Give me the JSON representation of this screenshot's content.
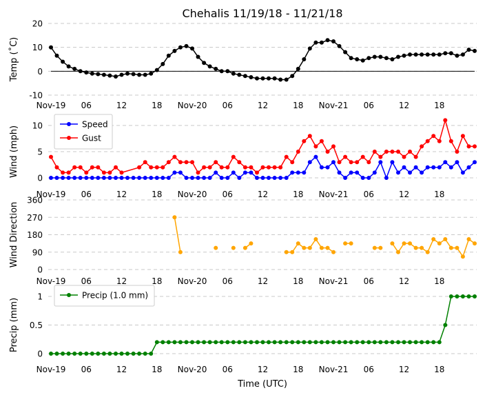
{
  "title": "Chehalis 11/19/18 - 11/21/18",
  "xlabel": "Time (UTC)",
  "x_ticks": [
    {
      "t": 0,
      "label": "Nov-19"
    },
    {
      "t": 6,
      "label": "06"
    },
    {
      "t": 12,
      "label": "12"
    },
    {
      "t": 18,
      "label": "18"
    },
    {
      "t": 24,
      "label": "Nov-20"
    },
    {
      "t": 30,
      "label": "06"
    },
    {
      "t": 36,
      "label": "12"
    },
    {
      "t": 42,
      "label": "18"
    },
    {
      "t": 48,
      "label": "Nov-21"
    },
    {
      "t": 54,
      "label": "06"
    },
    {
      "t": 60,
      "label": "12"
    },
    {
      "t": 66,
      "label": "18"
    }
  ],
  "xlim": [
    -1,
    72
  ],
  "colors": {
    "temp": "#000000",
    "speed": "#0000ff",
    "gust": "#ff0000",
    "direction": "#ffa500",
    "precip": "#008000",
    "grid": "#c8c8c8"
  },
  "chart_data": [
    {
      "type": "line",
      "ylabel": "Temp (˚C)",
      "ylim": [
        -10,
        20
      ],
      "yticks": [
        -10,
        0,
        10,
        20
      ],
      "zero_line": true,
      "series": [
        {
          "x": [
            0,
            1,
            2,
            3,
            4,
            5,
            6,
            7,
            8,
            9,
            10,
            11,
            12,
            13,
            14,
            15,
            16,
            17,
            18,
            19,
            20,
            21,
            22,
            23,
            24,
            25,
            26,
            27,
            28,
            29,
            30,
            31,
            32,
            33,
            34,
            35,
            36,
            37,
            38,
            39,
            40,
            41,
            42,
            43,
            44,
            45,
            46,
            47,
            48,
            49,
            50,
            51,
            52,
            53,
            54,
            55,
            56,
            57,
            58,
            59,
            60,
            61,
            62,
            63,
            64,
            65,
            66,
            67,
            68,
            69,
            70,
            71,
            72
          ],
          "values": [
            10,
            6.5,
            4,
            2,
            1,
            0,
            -0.5,
            -1,
            -1.2,
            -1.5,
            -1.8,
            -2.2,
            -1.5,
            -1,
            -1.2,
            -1.5,
            -1.5,
            -1,
            0.5,
            3,
            6.5,
            8.5,
            10,
            10.5,
            9.5,
            6,
            3.5,
            2,
            1,
            0,
            0,
            -1,
            -1.5,
            -2,
            -2.5,
            -3,
            -3,
            -3,
            -3,
            -3.5,
            -3.5,
            -2,
            1,
            5,
            9.5,
            12,
            12,
            13,
            12.5,
            10.5,
            8,
            5.5,
            5,
            4.5,
            5.5,
            6,
            6,
            5.5,
            5,
            6,
            6.5,
            7,
            7,
            7,
            7,
            7,
            7,
            7.5,
            7.5,
            6.5,
            7,
            9,
            8.5
          ]
        }
      ]
    },
    {
      "type": "line",
      "ylabel": "Wind (mph)",
      "ylim": [
        0,
        10
      ],
      "yticks": [
        0,
        5,
        10
      ],
      "legend": "top-left",
      "series": [
        {
          "name": "Speed",
          "x": [
            0,
            1,
            2,
            3,
            4,
            5,
            6,
            7,
            8,
            9,
            10,
            11,
            12,
            13,
            14,
            15,
            16,
            17,
            18,
            19,
            20,
            21,
            22,
            23,
            24,
            25,
            26,
            27,
            28,
            29,
            30,
            31,
            32,
            33,
            34,
            35,
            36,
            37,
            38,
            39,
            40,
            41,
            42,
            43,
            44,
            45,
            46,
            47,
            48,
            49,
            50,
            51,
            52,
            53,
            54,
            55,
            56,
            57,
            58,
            59,
            60,
            61,
            62,
            63,
            64,
            65,
            66,
            67,
            68,
            69,
            70,
            71,
            72
          ],
          "values": [
            0,
            0,
            0,
            0,
            0,
            0,
            0,
            0,
            0,
            0,
            0,
            0,
            0,
            0,
            0,
            0,
            0,
            0,
            0,
            0,
            0,
            1,
            1,
            0,
            0,
            0,
            0,
            0,
            1,
            0,
            0,
            1,
            0,
            1,
            1,
            0,
            0,
            0,
            0,
            0,
            0,
            1,
            1,
            1,
            3,
            4,
            2,
            2,
            3,
            1,
            0,
            1,
            1,
            0,
            0,
            1,
            3,
            0,
            3,
            1,
            2,
            1,
            2,
            1,
            2,
            2,
            2,
            3,
            2,
            3,
            1,
            2,
            3
          ]
        },
        {
          "name": "Gust",
          "x": [
            0,
            1,
            2,
            3,
            4,
            5,
            6,
            7,
            8,
            9,
            10,
            11,
            12,
            15,
            16,
            17,
            18,
            19,
            20,
            21,
            22,
            23,
            24,
            25,
            26,
            27,
            28,
            29,
            30,
            31,
            32,
            33,
            34,
            35,
            36,
            37,
            38,
            39,
            40,
            41,
            42,
            43,
            44,
            45,
            46,
            47,
            48,
            49,
            50,
            51,
            52,
            53,
            54,
            55,
            56,
            57,
            58,
            59,
            60,
            61,
            62,
            63,
            64,
            65,
            66,
            67,
            68,
            69,
            70,
            71,
            72
          ],
          "values": [
            4,
            2,
            1,
            1,
            2,
            2,
            1,
            2,
            2,
            1,
            1,
            2,
            1,
            2,
            3,
            2,
            2,
            2,
            3,
            4,
            3,
            3,
            3,
            1,
            2,
            2,
            3,
            2,
            2,
            4,
            3,
            2,
            2,
            1,
            2,
            2,
            2,
            2,
            4,
            3,
            5,
            7,
            8,
            6,
            7,
            5,
            6,
            3,
            4,
            3,
            3,
            4,
            3,
            5,
            4,
            5,
            5,
            5,
            4,
            5,
            4,
            6,
            7,
            8,
            7,
            11,
            7,
            5,
            8,
            6,
            6
          ]
        }
      ]
    },
    {
      "type": "line",
      "ylabel": "Wind Direction",
      "ylim": [
        0,
        360
      ],
      "yticks": [
        0,
        90,
        180,
        270,
        360
      ],
      "series": [
        {
          "segments": [
            {
              "x": [
                21,
                22
              ],
              "values": [
                270,
                90
              ]
            },
            {
              "x": [
                28
              ],
              "values": [
                112
              ]
            },
            {
              "x": [
                31
              ],
              "values": [
                112
              ]
            },
            {
              "x": [
                33,
                34
              ],
              "values": [
                112,
                135
              ]
            },
            {
              "x": [
                40,
                41,
                42,
                43,
                44,
                45,
                46,
                47,
                48
              ],
              "values": [
                90,
                90,
                135,
                112,
                112,
                157,
                112,
                112,
                90
              ]
            },
            {
              "x": [
                50,
                51
              ],
              "values": [
                135,
                135
              ]
            },
            {
              "x": [
                55,
                56
              ],
              "values": [
                112,
                112
              ]
            },
            {
              "x": [
                58,
                59,
                60,
                61,
                62,
                63,
                64,
                65,
                66,
                67,
                68,
                69,
                70,
                71,
                72
              ],
              "values": [
                135,
                90,
                135,
                135,
                112,
                112,
                90,
                157,
                135,
                157,
                112,
                112,
                67,
                157,
                135
              ]
            }
          ]
        }
      ]
    },
    {
      "type": "line",
      "ylabel": "Precip (mm)",
      "ylim": [
        0,
        1.0
      ],
      "yticks": [
        0.0,
        0.5,
        1.0
      ],
      "legend": "top-left",
      "series": [
        {
          "name": "Precip (1.0 mm)",
          "x": [
            0,
            1,
            2,
            3,
            4,
            5,
            6,
            7,
            8,
            9,
            10,
            11,
            12,
            13,
            14,
            15,
            16,
            17,
            18,
            19,
            20,
            21,
            22,
            23,
            24,
            25,
            26,
            27,
            28,
            29,
            30,
            31,
            32,
            33,
            34,
            35,
            36,
            37,
            38,
            39,
            40,
            41,
            42,
            43,
            44,
            45,
            46,
            47,
            48,
            49,
            50,
            51,
            52,
            53,
            54,
            55,
            56,
            57,
            58,
            59,
            60,
            61,
            62,
            63,
            64,
            65,
            66,
            67,
            68,
            69,
            70,
            71,
            72
          ],
          "values": [
            0,
            0,
            0,
            0,
            0,
            0,
            0,
            0,
            0,
            0,
            0,
            0,
            0,
            0,
            0,
            0,
            0,
            0,
            0.2,
            0.2,
            0.2,
            0.2,
            0.2,
            0.2,
            0.2,
            0.2,
            0.2,
            0.2,
            0.2,
            0.2,
            0.2,
            0.2,
            0.2,
            0.2,
            0.2,
            0.2,
            0.2,
            0.2,
            0.2,
            0.2,
            0.2,
            0.2,
            0.2,
            0.2,
            0.2,
            0.2,
            0.2,
            0.2,
            0.2,
            0.2,
            0.2,
            0.2,
            0.2,
            0.2,
            0.2,
            0.2,
            0.2,
            0.2,
            0.2,
            0.2,
            0.2,
            0.2,
            0.2,
            0.2,
            0.2,
            0.2,
            0.2,
            0.5,
            1.0,
            1.0,
            1.0,
            1.0,
            1.0
          ]
        }
      ]
    }
  ]
}
